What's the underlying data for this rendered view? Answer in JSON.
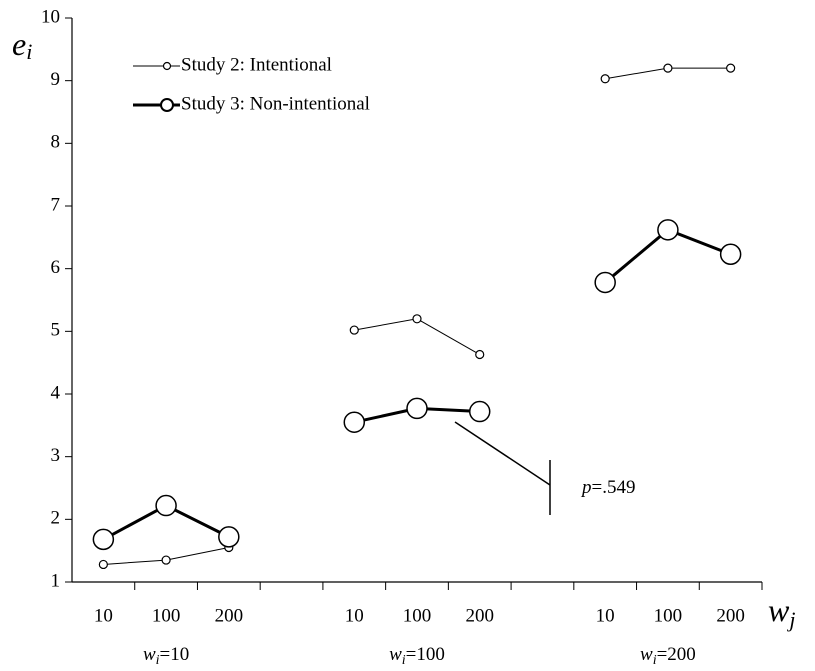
{
  "chart_data": {
    "type": "line",
    "y_label": {
      "var": "e",
      "sub": "i"
    },
    "x_label": {
      "var": "w",
      "sub": "j"
    },
    "categories": [
      "10",
      "100",
      "200",
      null,
      "10",
      "100",
      "200",
      null,
      "10",
      "100",
      "200"
    ],
    "groups": [
      {
        "var": "w",
        "sub": "i",
        "text": "=10"
      },
      {
        "var": "w",
        "sub": "i",
        "text": "=100"
      },
      {
        "var": "w",
        "sub": "i",
        "text": "=200"
      }
    ],
    "series": [
      {
        "name": "Study 2: Intentional",
        "color": "#000000",
        "values": [
          1.28,
          1.35,
          1.55,
          null,
          5.02,
          5.2,
          4.63,
          null,
          9.03,
          9.2,
          9.2
        ]
      },
      {
        "name": "Study 3: Non-intentional",
        "color": "#000000",
        "values": [
          1.68,
          2.22,
          1.72,
          null,
          3.55,
          3.77,
          3.72,
          null,
          5.78,
          6.62,
          6.23
        ]
      }
    ],
    "ylim": [
      1,
      10
    ],
    "yticks": [
      1,
      2,
      3,
      4,
      5,
      6,
      7,
      8,
      9,
      10
    ],
    "annotation": {
      "var": "p",
      "text": "=.549"
    }
  }
}
